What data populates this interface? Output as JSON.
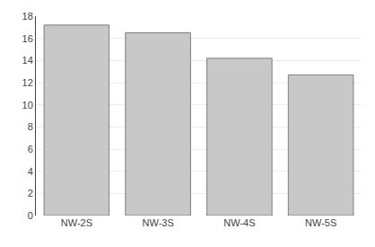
{
  "chart_data": {
    "type": "bar",
    "categories": [
      "NW-2S",
      "NW-3S",
      "NW-4S",
      "NW-5S"
    ],
    "values": [
      17.2,
      16.5,
      14.2,
      12.7
    ],
    "color": "#c8c8c8",
    "ylim": [
      0,
      18
    ],
    "yticks": [
      0,
      2,
      4,
      6,
      8,
      10,
      12,
      14,
      16,
      18
    ],
    "grid": true
  }
}
